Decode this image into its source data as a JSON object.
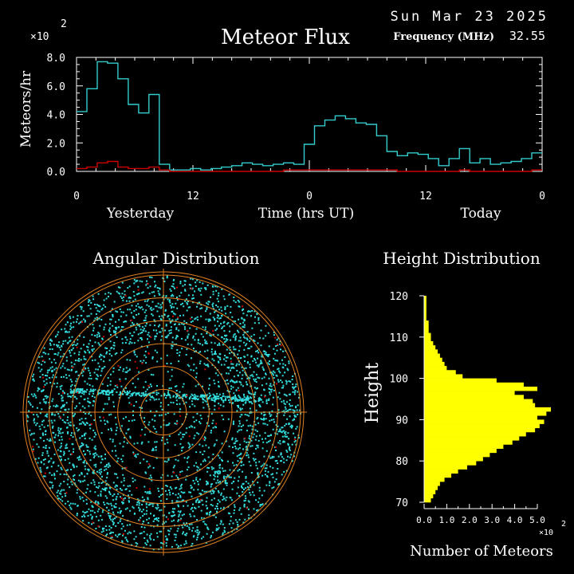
{
  "header": {
    "date": "Sun Mar 23 2025",
    "title": "Meteor Flux",
    "frequency_label": "Frequency (MHz)",
    "frequency_value": "32.55",
    "exponent_base": "×10",
    "exponent_power": "2"
  },
  "colors": {
    "background": "#000000",
    "axis": "#ffffff",
    "flux": "#33cccc",
    "secondary": "#cc0000",
    "points": "#33dddd",
    "rings": "#e08020",
    "height_bars": "#ffff00"
  },
  "chart_data": [
    {
      "type": "line",
      "title": "Meteor Flux",
      "ylabel": "Meteors/hr",
      "xlabel": "Time (hrs UT)",
      "y_multiplier": "×10^2",
      "ylim": [
        0,
        8.0
      ],
      "xlim": [
        0,
        48
      ],
      "yticks": [
        "0.0",
        "2.0",
        "4.0",
        "6.0",
        "8.0"
      ],
      "xticks": [
        {
          "x": 0,
          "label": "0"
        },
        {
          "x": 12,
          "label": "12"
        },
        {
          "x": 24,
          "label": "0"
        },
        {
          "x": 36,
          "label": "12"
        },
        {
          "x": 48,
          "label": "0"
        }
      ],
      "day_labels": [
        "Yesterday",
        "Today"
      ],
      "series": [
        {
          "values": [
            4.2,
            5.8,
            7.7,
            7.6,
            6.5,
            4.7,
            4.1,
            5.4,
            0.5,
            0.1,
            0.1,
            0.2,
            0.1,
            0.2,
            0.3,
            0.4,
            0.6,
            0.5,
            0.4,
            0.5,
            0.6,
            0.5,
            1.9,
            3.2,
            3.6,
            3.9,
            3.7,
            3.4,
            3.3,
            2.5,
            1.4,
            1.1,
            1.3,
            1.2,
            0.9,
            0.4,
            0.9,
            1.6,
            0.6,
            0.9,
            0.5,
            0.6,
            0.7,
            0.9,
            1.3
          ]
        },
        {
          "values": [
            0.2,
            0.3,
            0.6,
            0.7,
            0.3,
            0.2,
            0.2,
            0.3,
            0.1,
            0.0,
            0.0,
            0.0,
            0.0,
            0.0,
            0.0,
            0.0,
            0.0,
            0.0,
            0.0,
            0.0,
            0.1,
            0.1,
            0.1,
            0.1,
            0.1,
            0.1,
            0.1,
            0.1,
            0.1,
            0.1,
            0.1,
            0.0,
            0.0,
            0.0,
            0.0,
            0.0,
            0.0,
            0.1,
            0.0,
            0.0,
            0.0,
            0.0,
            0.0,
            0.0,
            0.1
          ]
        }
      ]
    },
    {
      "type": "scatter",
      "title": "Angular Distribution",
      "ring_count": 6,
      "notes": "polar sky plot of meteor echo positions"
    },
    {
      "type": "bar",
      "title": "Height Distribution",
      "ylabel": "Height",
      "xlabel": "Number of Meteors",
      "x_multiplier": "×10^2",
      "xlim": [
        0,
        5.0
      ],
      "ylim": [
        70,
        120
      ],
      "yticks": [
        "70",
        "80",
        "90",
        "100",
        "110",
        "120"
      ],
      "xticks": [
        "0.0",
        "1.0",
        "2.0",
        "3.0",
        "4.0",
        "5.0"
      ],
      "bins": [
        {
          "h": 70,
          "v": 0.3
        },
        {
          "h": 71,
          "v": 0.4
        },
        {
          "h": 72,
          "v": 0.5
        },
        {
          "h": 73,
          "v": 0.6
        },
        {
          "h": 74,
          "v": 0.7
        },
        {
          "h": 75,
          "v": 0.9
        },
        {
          "h": 76,
          "v": 1.2
        },
        {
          "h": 77,
          "v": 1.5
        },
        {
          "h": 78,
          "v": 1.9
        },
        {
          "h": 79,
          "v": 2.3
        },
        {
          "h": 80,
          "v": 2.6
        },
        {
          "h": 81,
          "v": 2.9
        },
        {
          "h": 82,
          "v": 3.2
        },
        {
          "h": 83,
          "v": 3.5
        },
        {
          "h": 84,
          "v": 3.9
        },
        {
          "h": 85,
          "v": 4.2
        },
        {
          "h": 86,
          "v": 4.5
        },
        {
          "h": 87,
          "v": 4.9
        },
        {
          "h": 88,
          "v": 5.1
        },
        {
          "h": 89,
          "v": 5.3
        },
        {
          "h": 90,
          "v": 5.0
        },
        {
          "h": 91,
          "v": 5.4
        },
        {
          "h": 92,
          "v": 5.6
        },
        {
          "h": 93,
          "v": 4.9
        },
        {
          "h": 94,
          "v": 4.8
        },
        {
          "h": 95,
          "v": 4.4
        },
        {
          "h": 96,
          "v": 4.0
        },
        {
          "h": 97,
          "v": 5.0
        },
        {
          "h": 98,
          "v": 4.4
        },
        {
          "h": 99,
          "v": 3.2
        },
        {
          "h": 100,
          "v": 1.7
        },
        {
          "h": 101,
          "v": 1.4
        },
        {
          "h": 102,
          "v": 1.0
        },
        {
          "h": 103,
          "v": 0.9
        },
        {
          "h": 104,
          "v": 0.8
        },
        {
          "h": 105,
          "v": 0.7
        },
        {
          "h": 106,
          "v": 0.6
        },
        {
          "h": 107,
          "v": 0.5
        },
        {
          "h": 108,
          "v": 0.4
        },
        {
          "h": 109,
          "v": 0.3
        },
        {
          "h": 110,
          "v": 0.3
        },
        {
          "h": 111,
          "v": 0.2
        },
        {
          "h": 112,
          "v": 0.2
        },
        {
          "h": 113,
          "v": 0.2
        },
        {
          "h": 114,
          "v": 0.1
        },
        {
          "h": 115,
          "v": 0.1
        },
        {
          "h": 116,
          "v": 0.1
        },
        {
          "h": 117,
          "v": 0.1
        },
        {
          "h": 118,
          "v": 0.1
        },
        {
          "h": 119,
          "v": 0.1
        }
      ]
    }
  ]
}
